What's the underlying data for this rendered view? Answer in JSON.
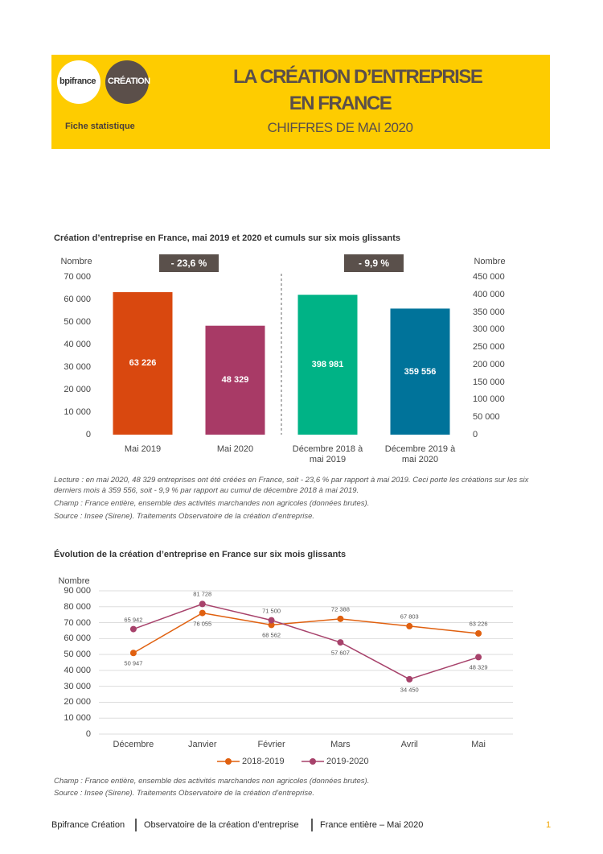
{
  "header": {
    "logo_left": "bpifrance",
    "logo_right": "CRÉATION",
    "subtitle": "Fiche statistique",
    "title_line_1": "LA CRÉATION D’ENTREPRISE",
    "title_line_2": "EN FRANCE",
    "title_line_3": "CHIFFRES DE MAI 2020"
  },
  "chart_data": [
    {
      "type": "bar",
      "title": "Création d’entreprise en France, mai 2019 et 2020 et cumuls sur six mois glissants",
      "y_label": "Nombre",
      "y2_label": "Nombre",
      "categories": [
        "Mai 2019",
        "Mai 2020",
        "Décembre 2018 à mai 2019",
        "Décembre 2019 à mai 2020"
      ],
      "colors": [
        "#d9480f",
        "#a83a66",
        "#00b386",
        "#00739a"
      ],
      "series": [
        {
          "values": [
            63226,
            48329,
            null,
            null
          ],
          "value_labels": [
            "63 226",
            "48 329",
            null,
            null
          ]
        },
        {
          "axis": "y2",
          "values": [
            null,
            null,
            398981,
            359556
          ],
          "value_labels": [
            null,
            null,
            "398 981",
            "359 556"
          ]
        }
      ],
      "annotations": [
        "- 23,6 %",
        "- 9,9 %"
      ],
      "ylim": [
        0,
        70000
      ],
      "yticks": [
        0,
        {
          "value": 10000,
          "label": "10 000"
        },
        {
          "value": 20000,
          "label": "20 000"
        },
        {
          "value": 30000,
          "label": "30 000"
        },
        {
          "value": 40000,
          "label": "40 000"
        },
        {
          "value": 50000,
          "label": "50 000"
        },
        {
          "value": 60000,
          "label": "60 000"
        },
        {
          "value": 70000,
          "label": "70 000"
        }
      ],
      "y2lim": [
        0,
        450000
      ],
      "y2ticks": [
        0,
        {
          "value": 50000,
          "label": "50 000"
        },
        {
          "value": 100000,
          "label": "100 000"
        },
        {
          "value": 150000,
          "label": "150 000"
        },
        {
          "value": 200000,
          "label": "200 000"
        },
        {
          "value": 250000,
          "label": "250 000"
        },
        {
          "value": 300000,
          "label": "300 000"
        },
        {
          "value": 350000,
          "label": "350 000"
        },
        {
          "value": 400000,
          "label": "400 000"
        },
        {
          "value": 450000,
          "label": "450 000"
        }
      ],
      "grid": false
    },
    {
      "type": "line",
      "title": "Évolution de la création d’entreprise en France sur six mois glissants",
      "y_label": "Nombre",
      "categories": [
        "Décembre",
        "Janvier",
        "Février",
        "Mars",
        "Avril",
        "Mai"
      ],
      "series": [
        {
          "name": "2018-2019",
          "color": "#e0600f",
          "values": [
            50947,
            76055,
            68562,
            72388,
            67803,
            63226
          ],
          "value_labels": [
            "50 947",
            "76 055",
            "68 562",
            "72 388",
            "67 803",
            "63 226"
          ]
        },
        {
          "name": "2019-2020",
          "color": "#a7426b",
          "values": [
            65942,
            81728,
            71500,
            57607,
            34450,
            48329
          ],
          "value_labels": [
            "65 942",
            "81 728",
            "71 500",
            "57 607",
            "34 450",
            "48 329"
          ]
        }
      ],
      "ylim": [
        0,
        90000
      ],
      "yticks": [
        0,
        {
          "value": 10000,
          "label": "10 000"
        },
        {
          "value": 20000,
          "label": "20 000"
        },
        {
          "value": 30000,
          "label": "30 000"
        },
        {
          "value": 40000,
          "label": "40 000"
        },
        {
          "value": 50000,
          "label": "50 000"
        },
        {
          "value": 60000,
          "label": "60 000"
        },
        {
          "value": 70000,
          "label": "70 000"
        },
        {
          "value": 80000,
          "label": "80 000"
        },
        {
          "value": 90000,
          "label": "90 000"
        }
      ],
      "grid": true,
      "legend": "bottom"
    }
  ],
  "notes_1": {
    "reading": "Lecture : en mai 2020, 48 329 entreprises ont été créées en France, soit - 23,6 % par rapport à mai 2019. Ceci porte les créations sur les six derniers mois à 359 556, soit - 9,9 % par rapport au cumul de décembre 2018 à mai 2019.",
    "scope": "Champ : France entière, ensemble des activités marchandes non agricoles (données brutes).",
    "source": "Source : Insee (Sirene). Traitements Observatoire de la création d’entreprise."
  },
  "notes_2": {
    "scope": "Champ : France entière, ensemble des activités marchandes non agricoles (données brutes).",
    "source": "Source : Insee (Sirene). Traitements Observatoire de la création d’entreprise."
  },
  "footer": {
    "org": "Bpifrance Création",
    "observatory": "Observatoire de la création d’entreprise",
    "scope": "France entière – Mai 2020",
    "page": "1"
  }
}
